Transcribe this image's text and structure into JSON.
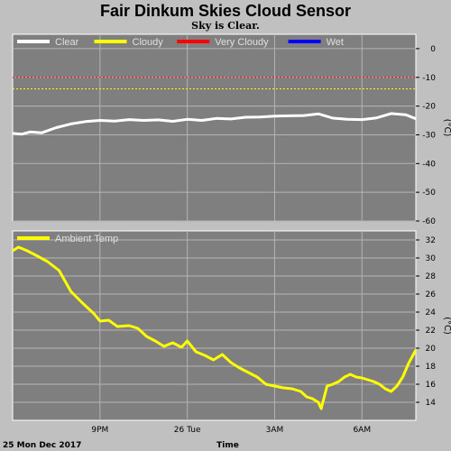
{
  "title": "Fair Dinkum Skies Cloud Sensor",
  "subtitle": "Sky is Clear.",
  "chart_data": [
    {
      "type": "line",
      "name": "sky-temperature",
      "ylabel": "(°C)",
      "ylim": [
        -60,
        5
      ],
      "yticks": [
        0,
        -10,
        -20,
        -30,
        -40,
        -50,
        -60
      ],
      "xlim": [
        18.0,
        31.85
      ],
      "grid": true,
      "legend_placement": "top-left",
      "legend": [
        {
          "label": "Clear",
          "color": "#ffffff"
        },
        {
          "label": "Cloudy",
          "color": "#ffff00"
        },
        {
          "label": "Very Cloudy",
          "color": "#ff0000"
        },
        {
          "label": "Wet",
          "color": "#0000ff"
        }
      ],
      "thresholds": [
        {
          "value": -10,
          "color": "#ff0000"
        },
        {
          "value": -14,
          "color": "#ffff00"
        }
      ],
      "series": [
        {
          "name": "Clear",
          "color": "#ffffff",
          "x": [
            18.0,
            18.3,
            18.6,
            19.0,
            19.5,
            20.0,
            20.5,
            21.0,
            21.5,
            22.0,
            22.5,
            23.0,
            23.5,
            24.0,
            24.5,
            25.0,
            25.5,
            26.0,
            26.5,
            27.0,
            27.5,
            28.0,
            28.5,
            29.0,
            29.5,
            30.0,
            30.5,
            31.0,
            31.5,
            31.85
          ],
          "y": [
            -29.5,
            -29.8,
            -29.0,
            -29.3,
            -27.5,
            -26.2,
            -25.4,
            -25.0,
            -25.2,
            -24.7,
            -25.0,
            -24.8,
            -25.3,
            -24.6,
            -25.0,
            -24.3,
            -24.5,
            -23.9,
            -23.8,
            -23.5,
            -23.4,
            -23.3,
            -22.7,
            -24.2,
            -24.6,
            -24.7,
            -24.1,
            -22.6,
            -23.0,
            -24.4
          ]
        }
      ]
    },
    {
      "type": "line",
      "name": "ambient-temperature",
      "ylabel": "(°C)",
      "xlabel": "Time",
      "date_label": "25 Mon Dec 2017",
      "ylim": [
        12,
        33
      ],
      "yticks": [
        32,
        30,
        28,
        26,
        24,
        22,
        20,
        18,
        16,
        14
      ],
      "xlim": [
        18.0,
        31.85
      ],
      "xticks": [
        {
          "value": 21,
          "label": "9PM"
        },
        {
          "value": 24,
          "label": "26 Tue"
        },
        {
          "value": 27,
          "label": "3AM"
        },
        {
          "value": 30,
          "label": "6AM"
        }
      ],
      "grid": true,
      "legend_placement": "top-left",
      "legend": [
        {
          "label": "Ambient Temp",
          "color": "#ffff00"
        }
      ],
      "series": [
        {
          "name": "Ambient Temp",
          "color": "#ffff00",
          "x": [
            18.0,
            18.2,
            18.5,
            18.8,
            19.2,
            19.6,
            20.0,
            20.4,
            20.8,
            21.0,
            21.3,
            21.6,
            22.0,
            22.3,
            22.6,
            22.9,
            23.2,
            23.5,
            23.8,
            24.0,
            24.3,
            24.6,
            24.9,
            25.2,
            25.5,
            25.8,
            26.1,
            26.4,
            26.7,
            27.0,
            27.3,
            27.6,
            27.9,
            28.1,
            28.3,
            28.5,
            28.6,
            28.8,
            29.0,
            29.2,
            29.4,
            29.6,
            29.8,
            30.0,
            30.2,
            30.4,
            30.6,
            30.8,
            31.0,
            31.2,
            31.4,
            31.6,
            31.85
          ],
          "y": [
            30.8,
            31.2,
            30.8,
            30.3,
            29.6,
            28.6,
            26.3,
            25.0,
            23.8,
            23.0,
            23.1,
            22.4,
            22.5,
            22.2,
            21.3,
            20.8,
            20.2,
            20.6,
            20.1,
            20.8,
            19.6,
            19.2,
            18.7,
            19.3,
            18.4,
            17.8,
            17.3,
            16.8,
            16.0,
            15.8,
            15.6,
            15.5,
            15.2,
            14.6,
            14.4,
            14.0,
            13.3,
            15.8,
            16.0,
            16.3,
            16.8,
            17.1,
            16.8,
            16.7,
            16.5,
            16.3,
            16.0,
            15.5,
            15.2,
            15.8,
            16.8,
            18.3,
            19.8
          ]
        }
      ]
    }
  ]
}
